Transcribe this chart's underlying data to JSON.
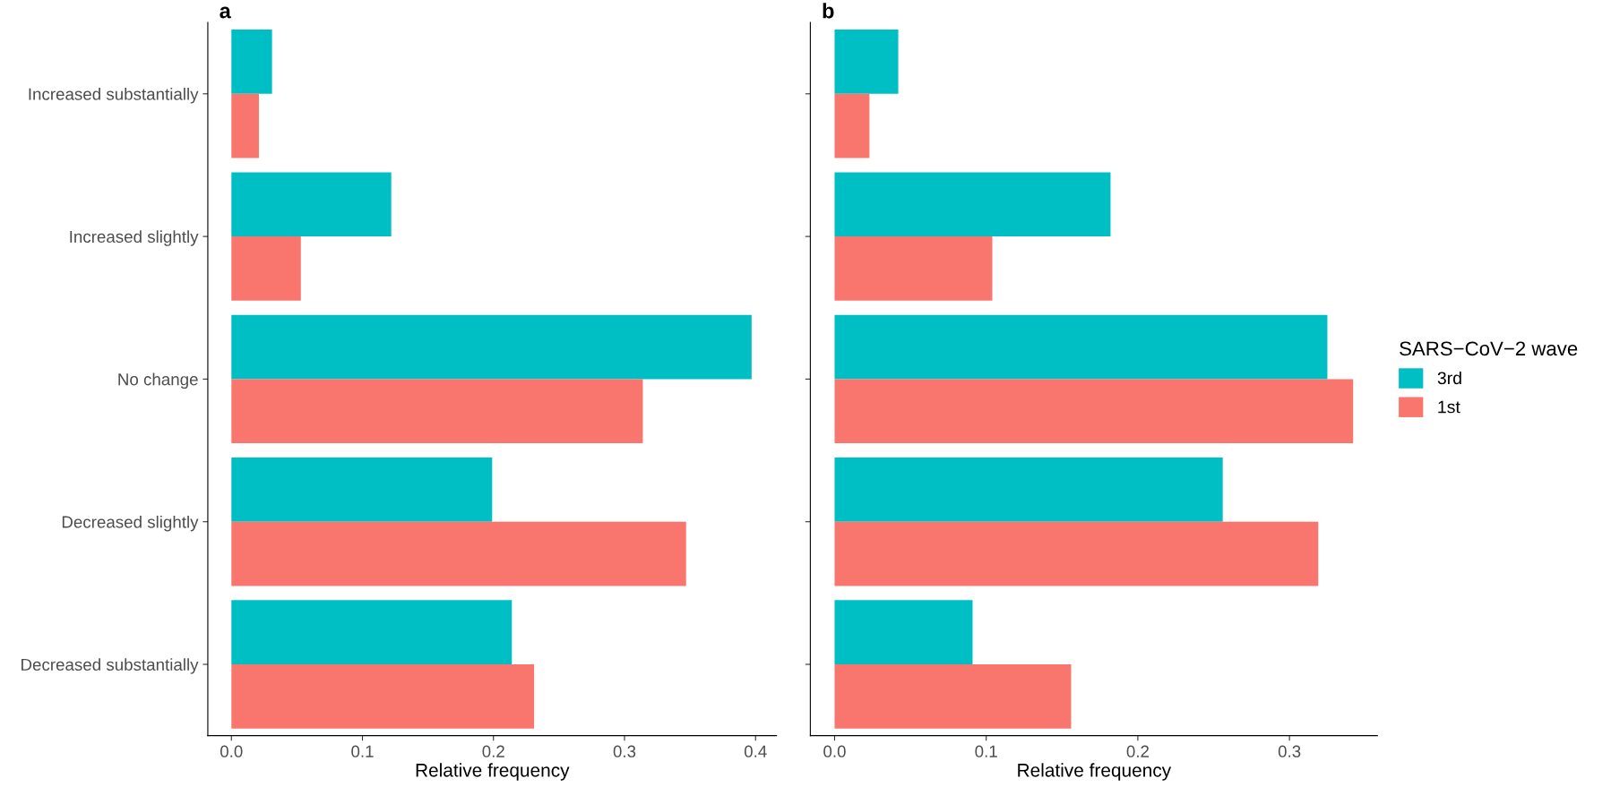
{
  "chart_data": [
    {
      "type": "bar",
      "orientation": "horizontal",
      "title": "a",
      "xlabel": "Relative frequency",
      "categories": [
        "Increased substantially",
        "Increased slightly",
        "No change",
        "Decreased slightly",
        "Decreased substantially"
      ],
      "series": [
        {
          "color": "#00bfc4",
          "values": [
            0.031,
            0.122,
            0.397,
            0.199,
            0.214
          ]
        },
        {
          "color": "#f8766d",
          "values": [
            0.021,
            0.053,
            0.314,
            0.347,
            0.231
          ]
        }
      ],
      "xlim": [
        -0.018,
        0.416
      ],
      "xticks": [
        {
          "value": 0,
          "label": "0.0"
        },
        0.1,
        0.2,
        0.3,
        0.4
      ],
      "grid": false,
      "legend": false
    },
    {
      "type": "bar",
      "orientation": "horizontal",
      "title": "b",
      "xlabel": "Relative frequency",
      "categories": [
        null,
        null,
        null,
        null,
        null
      ],
      "tick_labels": "x",
      "series": [
        {
          "name": "3rd",
          "color": "#00bfc4",
          "values": [
            0.042,
            0.182,
            0.325,
            0.256,
            0.091
          ]
        },
        {
          "name": "1st",
          "color": "#f8766d",
          "values": [
            0.023,
            0.104,
            0.342,
            0.319,
            0.156
          ]
        }
      ],
      "xlim": [
        -0.016,
        0.358
      ],
      "xticks": [
        {
          "value": 0,
          "label": "0.0"
        },
        0.1,
        0.2,
        0.3
      ],
      "grid": false,
      "legend": "right",
      "legend_title": "SARS−CoV−2 wave"
    }
  ]
}
